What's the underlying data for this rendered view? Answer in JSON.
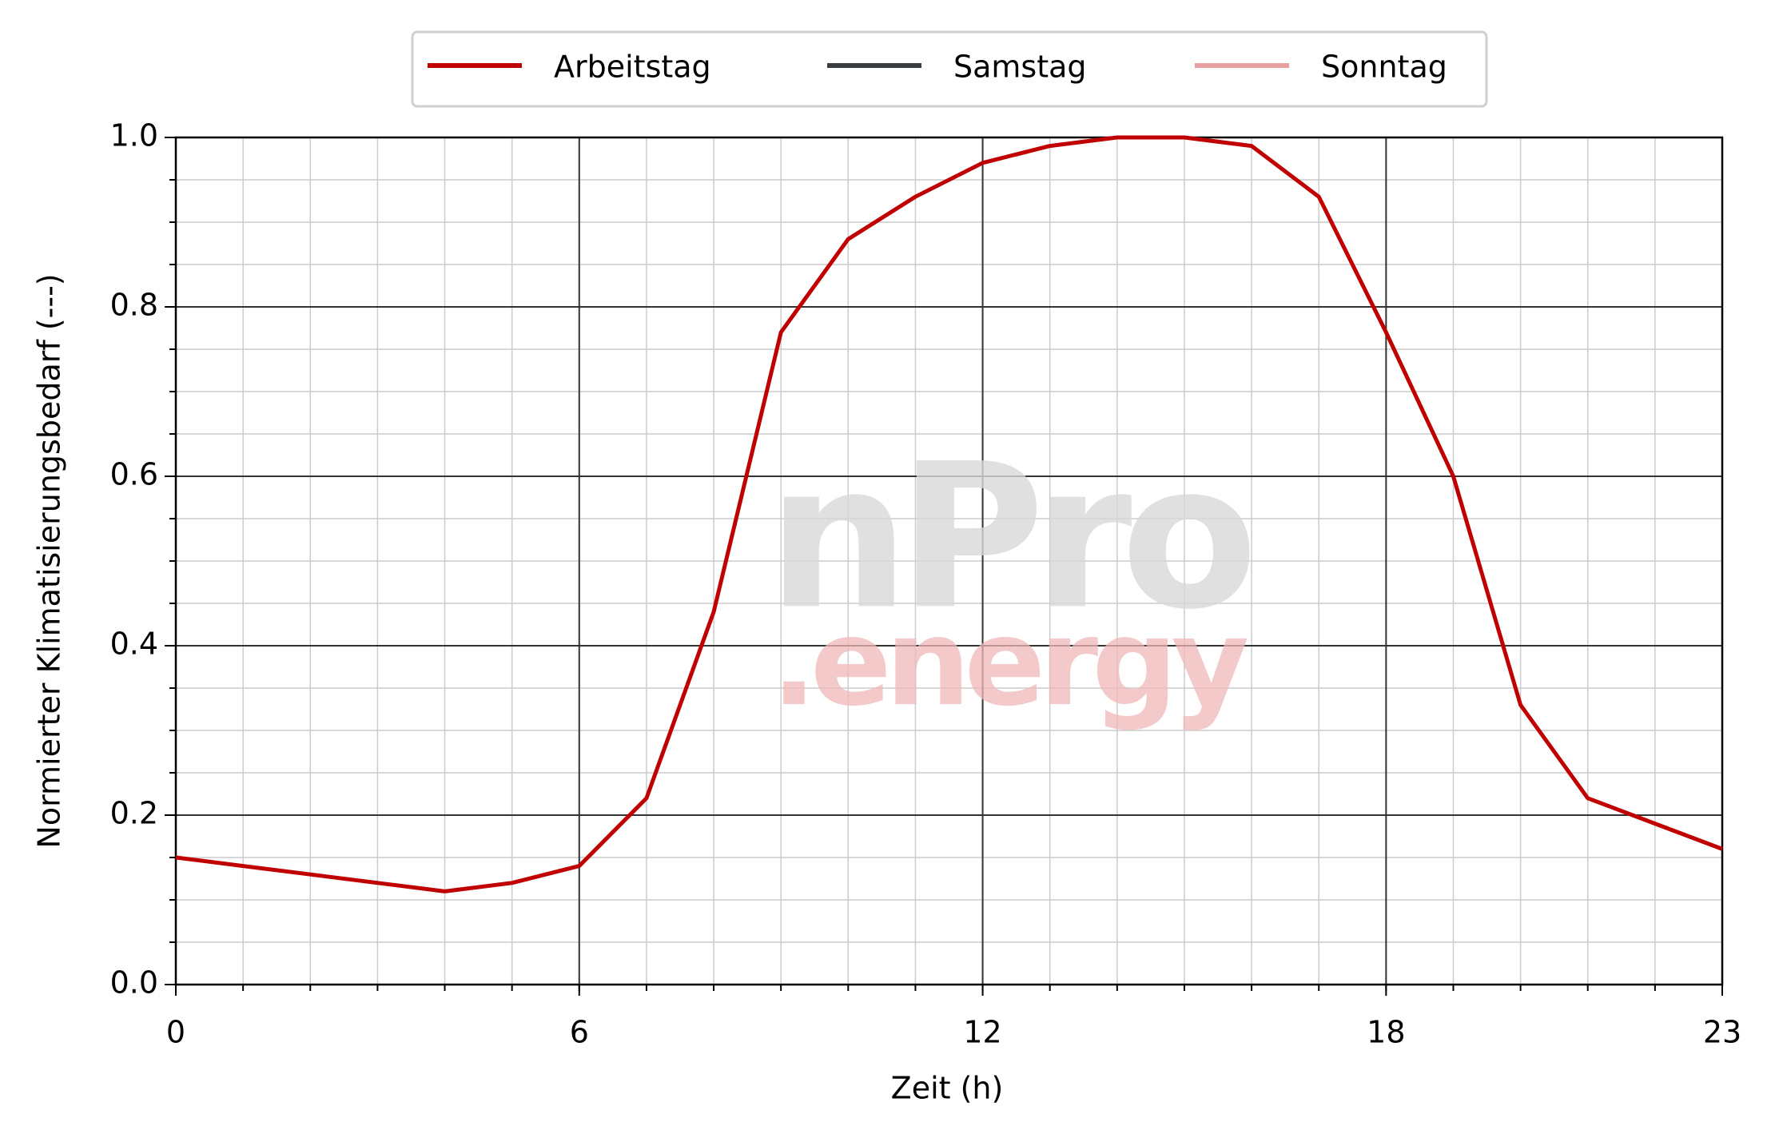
{
  "chart_data": {
    "type": "line",
    "xlabel": "Zeit (h)",
    "ylabel": "Normierter Klimatisierungsbedarf (---)",
    "watermark": [
      "nPro",
      ".energy"
    ],
    "x": [
      0,
      1,
      2,
      3,
      4,
      5,
      6,
      7,
      8,
      9,
      10,
      11,
      12,
      13,
      14,
      15,
      16,
      17,
      18,
      19,
      20,
      21,
      22,
      23
    ],
    "series": [
      {
        "name": "Arbeitstag",
        "color": "#c00000",
        "values": [
          0.15,
          0.14,
          0.13,
          0.12,
          0.11,
          0.12,
          0.14,
          0.22,
          0.44,
          0.77,
          0.88,
          0.93,
          0.97,
          0.99,
          1.0,
          1.0,
          0.99,
          0.93,
          0.77,
          0.6,
          0.33,
          0.22,
          0.19,
          0.16
        ]
      },
      {
        "name": "Samstag",
        "color": "#3a3d40",
        "values": [
          null,
          null,
          null,
          null,
          null,
          null,
          null,
          null,
          null,
          null,
          null,
          null,
          null,
          null,
          null,
          null,
          null,
          null,
          null,
          null,
          null,
          null,
          null,
          null
        ]
      },
      {
        "name": "Sonntag",
        "color": "#e8a0a0",
        "values": [
          null,
          null,
          null,
          null,
          null,
          null,
          null,
          null,
          null,
          null,
          null,
          null,
          null,
          null,
          null,
          null,
          null,
          null,
          null,
          null,
          null,
          null,
          null,
          null
        ]
      }
    ],
    "xlim": [
      0,
      23
    ],
    "xticks": [
      0,
      6,
      12,
      18,
      23
    ],
    "ylim": [
      0,
      1
    ],
    "yticks": [
      {
        "value": 0,
        "label": "0.0"
      },
      {
        "value": 0.2,
        "label": "0.2"
      },
      {
        "value": 0.4,
        "label": "0.4"
      },
      {
        "value": 0.6,
        "label": "0.6"
      },
      {
        "value": 0.8,
        "label": "0.8"
      },
      {
        "value": 1,
        "label": "1.0"
      }
    ],
    "grid": true,
    "minor_grid": true,
    "legend": "top"
  }
}
